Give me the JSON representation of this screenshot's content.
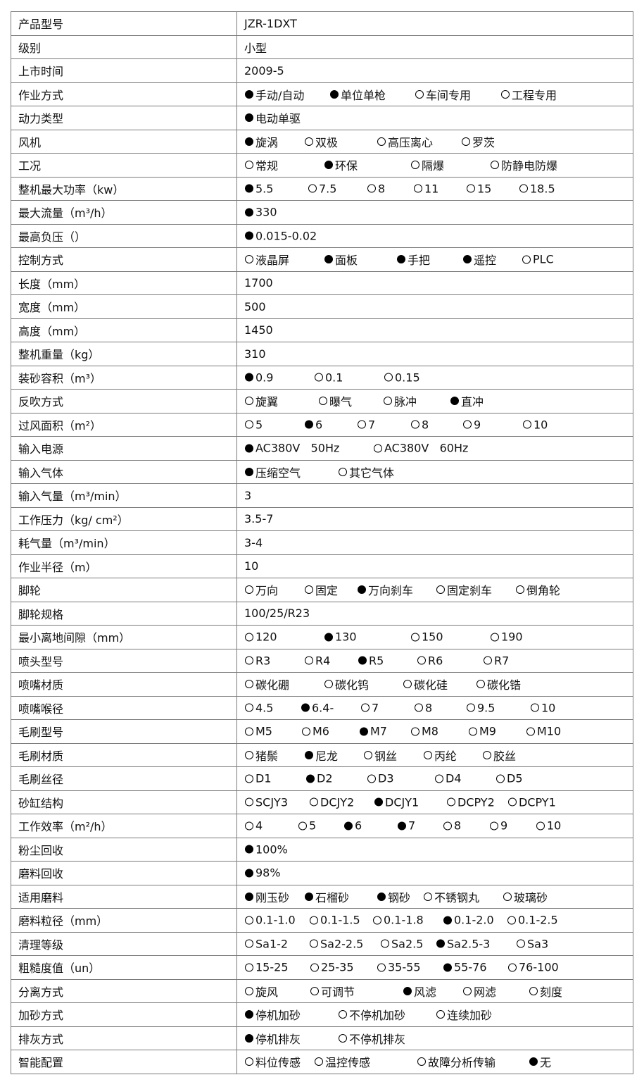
{
  "rows": [
    {
      "label": "产品型号",
      "value": "JZR-1DXT"
    },
    {
      "label": "级别",
      "value": "小型"
    },
    {
      "label": "上市时间",
      "value": "2009-5"
    },
    {
      "label": "作业方式",
      "options": [
        {
          "label": "手动/自动",
          "checked": true
        },
        {
          "label": "单位单枪",
          "checked": true
        },
        {
          "label": "车间专用",
          "checked": false
        },
        {
          "label": "工程专用",
          "checked": false
        }
      ]
    },
    {
      "label": "动力类型",
      "options": [
        {
          "label": "电动单驱",
          "checked": true
        }
      ]
    },
    {
      "label": "风机",
      "options": [
        {
          "label": "旋涡",
          "checked": true
        },
        {
          "label": "双极",
          "checked": false
        },
        {
          "label": "高压离心",
          "checked": false
        },
        {
          "label": "罗茨",
          "checked": false
        }
      ]
    },
    {
      "label": "工况",
      "options": [
        {
          "label": "常规",
          "checked": false
        },
        {
          "label": "环保",
          "checked": true
        },
        {
          "label": "隔爆",
          "checked": false
        },
        {
          "label": "防静电防爆",
          "checked": false
        }
      ]
    },
    {
      "label": "整机最大功率（kw）",
      "options": [
        {
          "label": "5.5",
          "checked": true
        },
        {
          "label": "7.5",
          "checked": false
        },
        {
          "label": "8",
          "checked": false
        },
        {
          "label": "11",
          "checked": false
        },
        {
          "label": "15",
          "checked": false
        },
        {
          "label": "18.5",
          "checked": false
        }
      ]
    },
    {
      "label": "最大流量（m³/h）",
      "options": [
        {
          "label": "330",
          "checked": true
        }
      ]
    },
    {
      "label": "最高负压（）",
      "options": [
        {
          "label": "0.015-0.02",
          "checked": true
        }
      ]
    },
    {
      "label": "控制方式",
      "options": [
        {
          "label": "液晶屏",
          "checked": false
        },
        {
          "label": "面板",
          "checked": true
        },
        {
          "label": "手把",
          "checked": true
        },
        {
          "label": "遥控",
          "checked": true
        },
        {
          "label": "PLC",
          "checked": false
        }
      ]
    },
    {
      "label": "长度（mm）",
      "value": "1700"
    },
    {
      "label": "宽度（mm）",
      "value": "500"
    },
    {
      "label": "高度（mm）",
      "value": "1450"
    },
    {
      "label": "整机重量（kg）",
      "value": "310"
    },
    {
      "label": "装砂容积（m³）",
      "options": [
        {
          "label": "0.9",
          "checked": true
        },
        {
          "label": "0.1",
          "checked": false
        },
        {
          "label": "0.15",
          "checked": false
        }
      ]
    },
    {
      "label": "反吹方式",
      "options": [
        {
          "label": "旋翼",
          "checked": false
        },
        {
          "label": "曝气",
          "checked": false
        },
        {
          "label": "脉冲",
          "checked": false
        },
        {
          "label": "直冲",
          "checked": true
        }
      ]
    },
    {
      "label": "过风面积（m²）",
      "options": [
        {
          "label": "5",
          "checked": false
        },
        {
          "label": "6",
          "checked": true
        },
        {
          "label": "7",
          "checked": false
        },
        {
          "label": "8",
          "checked": false
        },
        {
          "label": "9",
          "checked": false
        },
        {
          "label": "10",
          "checked": false
        }
      ]
    },
    {
      "label": "输入电源",
      "options": [
        {
          "label": "AC380V   50Hz",
          "checked": true
        },
        {
          "label": "AC380V   60Hz",
          "checked": false
        }
      ]
    },
    {
      "label": "输入气体",
      "options": [
        {
          "label": "压缩空气",
          "checked": true
        },
        {
          "label": "其它气体",
          "checked": false
        }
      ]
    },
    {
      "label": "输入气量（m³/min）",
      "value": "3"
    },
    {
      "label": "工作压力（kg/ cm²）",
      "value": "3.5-7"
    },
    {
      "label": "耗气量（m³/min）",
      "value": "3-4"
    },
    {
      "label": "作业半径（m）",
      "value": "10"
    },
    {
      "label": "脚轮",
      "options": [
        {
          "label": "万向",
          "checked": false
        },
        {
          "label": "固定",
          "checked": false
        },
        {
          "label": "万向刹车",
          "checked": true
        },
        {
          "label": "固定刹车",
          "checked": false
        },
        {
          "label": "倒角轮",
          "checked": false
        }
      ]
    },
    {
      "label": "脚轮规格",
      "value": "100/25/R23"
    },
    {
      "label": "最小离地间隙（mm）",
      "options": [
        {
          "label": "120",
          "checked": false
        },
        {
          "label": "130",
          "checked": true
        },
        {
          "label": "150",
          "checked": false
        },
        {
          "label": "190",
          "checked": false
        }
      ]
    },
    {
      "label": "喷头型号",
      "options": [
        {
          "label": "R3",
          "checked": false
        },
        {
          "label": "R4",
          "checked": false
        },
        {
          "label": "R5",
          "checked": true
        },
        {
          "label": "R6",
          "checked": false
        },
        {
          "label": "R7",
          "checked": false
        }
      ]
    },
    {
      "label": "喷嘴材质",
      "options": [
        {
          "label": "碳化硼",
          "checked": false
        },
        {
          "label": "碳化钨",
          "checked": false
        },
        {
          "label": "碳化硅",
          "checked": false
        },
        {
          "label": "碳化锆",
          "checked": false
        }
      ]
    },
    {
      "label": "喷嘴喉径",
      "options": [
        {
          "label": "4.5",
          "checked": false
        },
        {
          "label": "6.4-",
          "checked": true
        },
        {
          "label": "7",
          "checked": false
        },
        {
          "label": "8",
          "checked": false
        },
        {
          "label": "9.5",
          "checked": false
        },
        {
          "label": "10",
          "checked": false
        }
      ]
    },
    {
      "label": "毛刷型号",
      "options": [
        {
          "label": "M5",
          "checked": false
        },
        {
          "label": "M6",
          "checked": false
        },
        {
          "label": "M7",
          "checked": true
        },
        {
          "label": "M8",
          "checked": false
        },
        {
          "label": "M9",
          "checked": false
        },
        {
          "label": "M10",
          "checked": false
        }
      ]
    },
    {
      "label": "毛刷材质",
      "options": [
        {
          "label": "猪鬃",
          "checked": false
        },
        {
          "label": "尼龙",
          "checked": true
        },
        {
          "label": "钢丝",
          "checked": false
        },
        {
          "label": "丙纶",
          "checked": false
        },
        {
          "label": "胶丝",
          "checked": false
        }
      ]
    },
    {
      "label": "毛刷丝径",
      "options": [
        {
          "label": "D1",
          "checked": false
        },
        {
          "label": "D2",
          "checked": true
        },
        {
          "label": "D3",
          "checked": false
        },
        {
          "label": "D4",
          "checked": false
        },
        {
          "label": "D5",
          "checked": false
        }
      ]
    },
    {
      "label": "砂缸结构",
      "options": [
        {
          "label": "SCJY3",
          "checked": false
        },
        {
          "label": "DCJY2",
          "checked": false
        },
        {
          "label": "DCJY1",
          "checked": true
        },
        {
          "label": "DCPY2",
          "checked": false
        },
        {
          "label": "DCPY1",
          "checked": false
        }
      ]
    },
    {
      "label": "工作效率（m²/h）",
      "options": [
        {
          "label": "4",
          "checked": false
        },
        {
          "label": "5",
          "checked": false
        },
        {
          "label": "6",
          "checked": true
        },
        {
          "label": "7",
          "checked": true
        },
        {
          "label": "8",
          "checked": false
        },
        {
          "label": "9",
          "checked": false
        },
        {
          "label": "10",
          "checked": false
        }
      ]
    },
    {
      "label": "粉尘回收",
      "options": [
        {
          "label": "100%",
          "checked": true
        }
      ]
    },
    {
      "label": "磨料回收",
      "options": [
        {
          "label": "98%",
          "checked": true
        }
      ]
    },
    {
      "label": "适用磨料",
      "options": [
        {
          "label": "刚玉砂",
          "checked": true
        },
        {
          "label": "石榴砂",
          "checked": true
        },
        {
          "label": "钢砂",
          "checked": true
        },
        {
          "label": "不锈钢丸",
          "checked": false
        },
        {
          "label": "玻璃砂",
          "checked": false
        }
      ]
    },
    {
      "label": "磨料粒径（mm）",
      "options": [
        {
          "label": "0.1-1.0",
          "checked": false
        },
        {
          "label": "0.1-1.5",
          "checked": false
        },
        {
          "label": "0.1-1.8",
          "checked": false
        },
        {
          "label": "0.1-2.0",
          "checked": true
        },
        {
          "label": "0.1-2.5",
          "checked": false
        }
      ]
    },
    {
      "label": "清理等级",
      "options": [
        {
          "label": "Sa1-2",
          "checked": false
        },
        {
          "label": "Sa2-2.5",
          "checked": false
        },
        {
          "label": "Sa2.5",
          "checked": false
        },
        {
          "label": "Sa2.5-3",
          "checked": true
        },
        {
          "label": "Sa3",
          "checked": false
        }
      ]
    },
    {
      "label": "粗糙度值（un）",
      "options": [
        {
          "label": "15-25",
          "checked": false
        },
        {
          "label": "25-35",
          "checked": false
        },
        {
          "label": "35-55",
          "checked": false
        },
        {
          "label": "55-76",
          "checked": true
        },
        {
          "label": "76-100",
          "checked": false
        }
      ]
    },
    {
      "label": "分离方式",
      "options": [
        {
          "label": "旋风",
          "checked": false
        },
        {
          "label": "可调节",
          "checked": false
        },
        {
          "label": "风滤",
          "checked": true
        },
        {
          "label": "网滤",
          "checked": false
        },
        {
          "label": "刻度",
          "checked": false
        }
      ]
    },
    {
      "label": "加砂方式",
      "options": [
        {
          "label": "停机加砂",
          "checked": true
        },
        {
          "label": "不停机加砂",
          "checked": false
        },
        {
          "label": "连续加砂",
          "checked": false
        }
      ]
    },
    {
      "label": "排灰方式",
      "options": [
        {
          "label": "停机排灰",
          "checked": true
        },
        {
          "label": "不停机排灰",
          "checked": false
        }
      ]
    },
    {
      "label": "智能配置",
      "options": [
        {
          "label": "料位传感",
          "checked": false
        },
        {
          "label": "温控传感",
          "checked": false
        },
        {
          "label": "故障分析传输",
          "checked": false
        },
        {
          "label": "无",
          "checked": true
        }
      ]
    }
  ]
}
